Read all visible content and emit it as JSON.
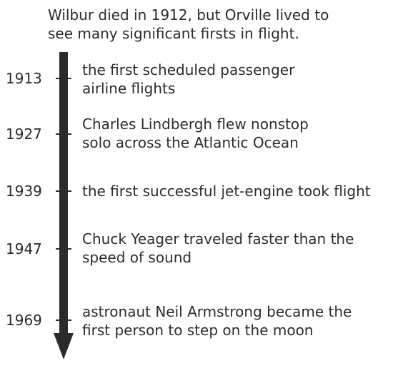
{
  "intro": "Wilbur died in 1912, but Orville lived to\nsee many significant firsts in flight.",
  "colors": {
    "text": "#2b2b2b",
    "arrow": "#2b2b2b"
  },
  "events": [
    {
      "year": "1913",
      "text": "the first scheduled passenger\nairline flights"
    },
    {
      "year": "1927",
      "text": "Charles Lindbergh flew nonstop\nsolo across the Atlantic Ocean"
    },
    {
      "year": "1939",
      "text": "the first successful jet-engine took flight"
    },
    {
      "year": "1947",
      "text": "Chuck Yeager traveled faster than the\nspeed of sound"
    },
    {
      "year": "1969",
      "text": "astronaut Neil Armstrong became the\nfirst person to step on the moon"
    }
  ]
}
